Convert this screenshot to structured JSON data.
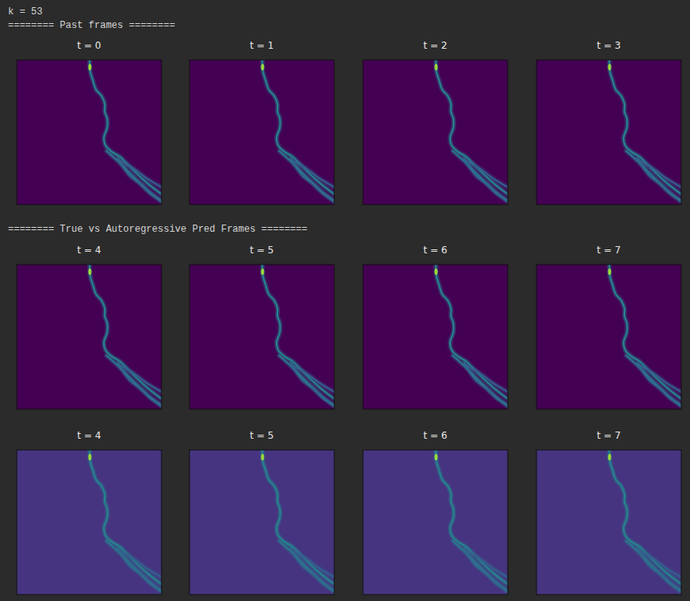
{
  "header": "k = 53",
  "section_titles": [
    "======== Past frames ========",
    "======== True vs Autoregressive Pred Frames  ========"
  ],
  "image": {
    "xlim": [
      0,
      100
    ],
    "ylim": [
      0,
      100
    ],
    "channels": [
      {
        "intensity": 0.45,
        "points": [
          [
            50.3,
            0
          ],
          [
            50.8,
            8.3
          ],
          [
            52.5,
            13.8
          ],
          [
            54.7,
            20.4
          ],
          [
            58.6,
            24.9
          ],
          [
            60.8,
            30.4
          ],
          [
            60.8,
            35.9
          ],
          [
            62.4,
            40.3
          ],
          [
            62.4,
            47
          ],
          [
            60.2,
            53.6
          ],
          [
            61.3,
            59.1
          ],
          [
            65.7,
            63.5
          ],
          [
            71.3,
            66.9
          ],
          [
            76.8,
            72.4
          ],
          [
            83.4,
            79
          ],
          [
            90.6,
            85.6
          ],
          [
            100,
            92.8
          ]
        ]
      },
      {
        "intensity": 0.4,
        "points": [
          [
            62,
            63
          ],
          [
            72,
            72
          ],
          [
            80,
            80
          ],
          [
            88,
            88
          ],
          [
            95,
            94
          ],
          [
            100,
            98
          ]
        ]
      },
      {
        "intensity": 0.35,
        "points": [
          [
            70,
            68
          ],
          [
            78,
            80
          ],
          [
            86,
            86
          ],
          [
            92,
            92
          ],
          [
            100,
            97
          ]
        ]
      },
      {
        "intensity": 0.3,
        "points": [
          [
            72,
            70
          ],
          [
            82,
            76
          ],
          [
            90,
            82
          ],
          [
            100,
            88
          ]
        ]
      }
    ],
    "peaks": [
      {
        "x": 50.5,
        "y": 5,
        "value": 0.85
      }
    ]
  },
  "chart_data": [
    {
      "type": "image",
      "title": "t = 0",
      "background": 0,
      "tick_labels": false
    },
    {
      "type": "image",
      "title": "t = 1",
      "background": 0,
      "tick_labels": false
    },
    {
      "type": "image",
      "title": "t = 2",
      "background": 0,
      "tick_labels": false
    },
    {
      "type": "image",
      "title": "t = 3",
      "background": 0,
      "tick_labels": false
    },
    {
      "type": "image",
      "title": "t = 4",
      "background": 0,
      "tick_labels": false
    },
    {
      "type": "image",
      "title": "t = 5",
      "background": 0,
      "tick_labels": false
    },
    {
      "type": "image",
      "title": "t = 6",
      "background": 0,
      "tick_labels": false
    },
    {
      "type": "image",
      "title": "t = 7",
      "background": 0,
      "tick_labels": false
    },
    {
      "type": "image",
      "title": "t = 4",
      "background": 0.15,
      "tick_labels": false
    },
    {
      "type": "image",
      "title": "t = 5",
      "background": 0.15,
      "tick_labels": false
    },
    {
      "type": "image",
      "title": "t = 6",
      "background": 0.15,
      "tick_labels": false
    },
    {
      "type": "image",
      "title": "t = 7",
      "background": 0.15,
      "tick_labels": false
    }
  ]
}
